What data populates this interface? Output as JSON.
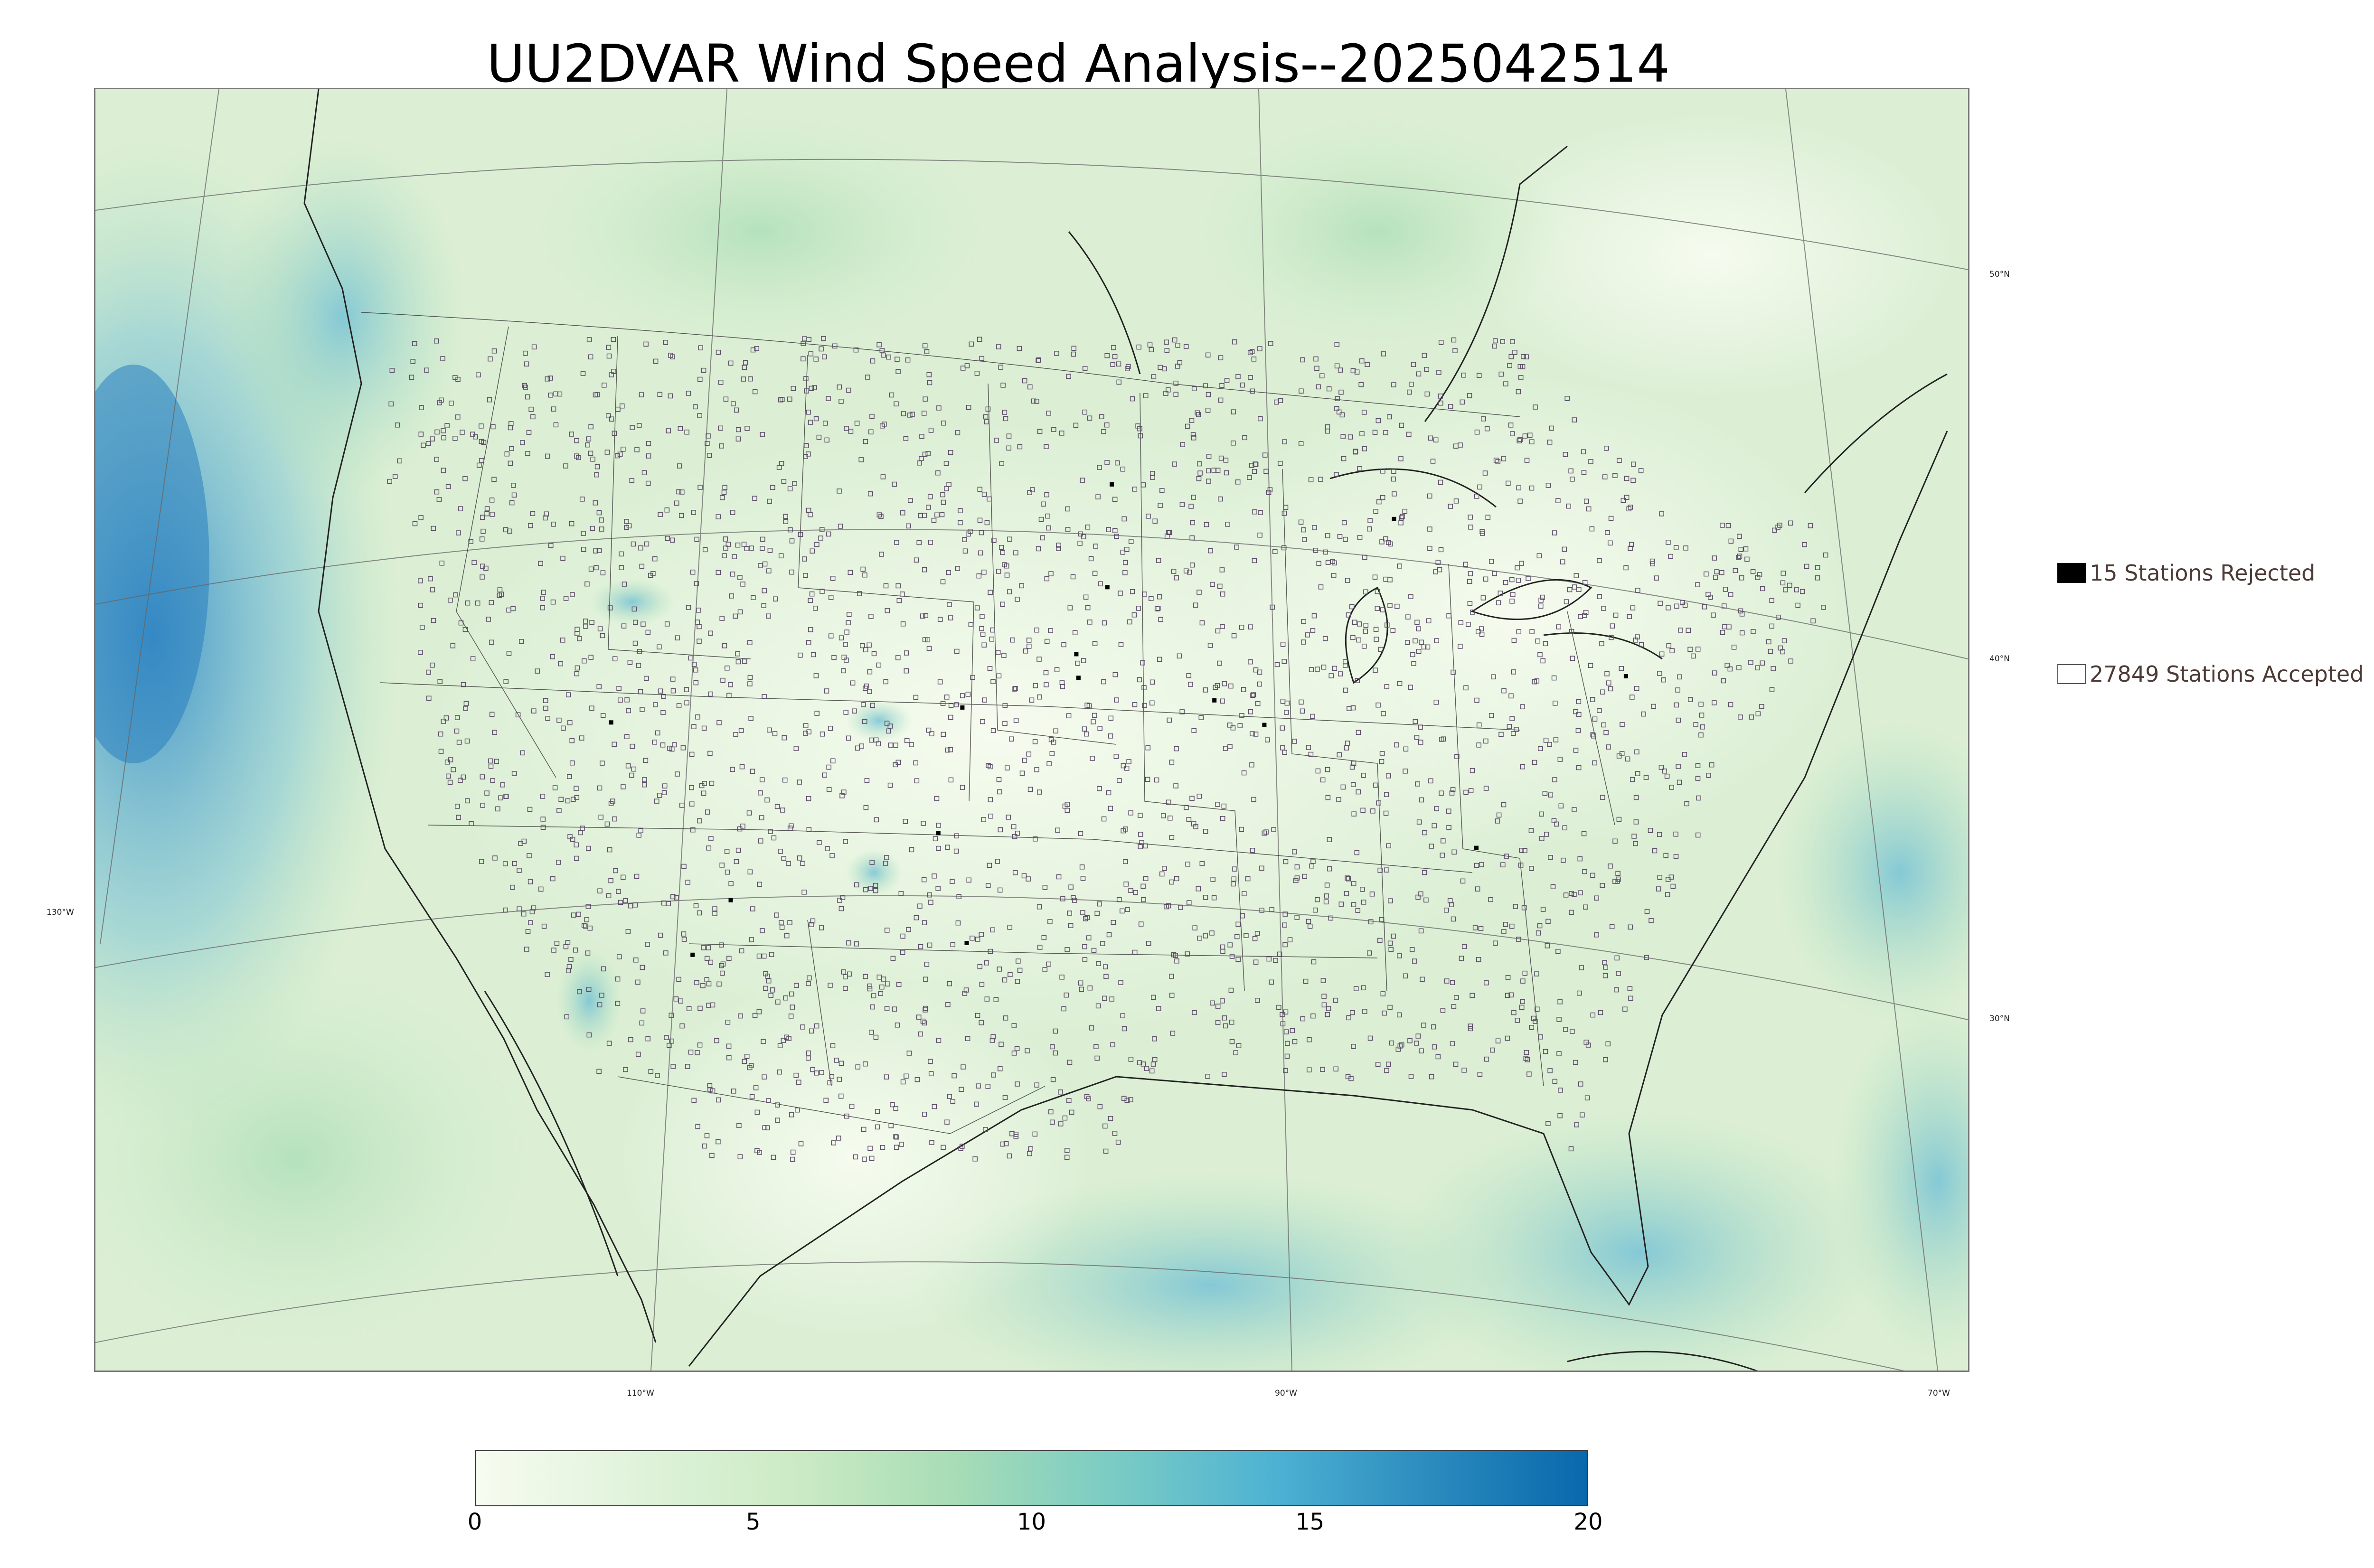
{
  "title": "UU2DVAR Wind Speed Analysis--2025042514",
  "graticule": {
    "lat_labels": [
      "50°N",
      "40°N",
      "30°N"
    ],
    "lon_labels": [
      "130°W",
      "110°W",
      "90°W",
      "70°W"
    ]
  },
  "legend": {
    "rejected": {
      "count": 15,
      "label": "15 Stations Rejected",
      "color": "#000000"
    },
    "accepted": {
      "count": 27849,
      "label": "27849 Stations Accepted",
      "color": "#ffffff"
    }
  },
  "colorbar": {
    "min": 0,
    "max": 20,
    "ticks": [
      "0",
      "5",
      "10",
      "15",
      "20"
    ],
    "colors": [
      "#f7fcf0",
      "#e0f3db",
      "#ccebc5",
      "#a8ddb5",
      "#7bccc4",
      "#4eb3d3",
      "#2b8cbe",
      "#0868ac"
    ]
  },
  "colors": {
    "ocean_strong": "#3a8fc9",
    "land_base": "#e6f4df",
    "station_outline": "#5a4a66"
  }
}
